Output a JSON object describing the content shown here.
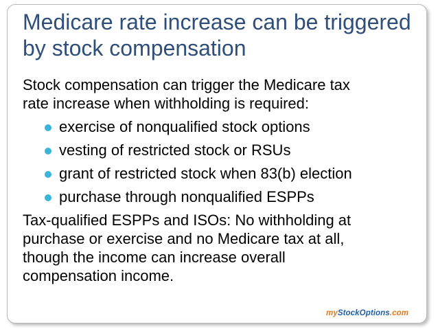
{
  "slide": {
    "title_lines": [
      "Medicare rate increase can be triggered",
      "by stock compensation"
    ],
    "intro": "Stock compensation can trigger the Medicare tax rate increase when withholding is required:",
    "intro_lines": [
      "Stock compensation can trigger the Medicare tax",
      "rate increase when withholding is required:"
    ],
    "bullets": [
      "exercise of nonqualified stock options",
      "vesting of restricted stock or RSUs",
      "grant of restricted stock when 83(b) election",
      "purchase through nonqualified ESPPs"
    ],
    "closing_lines": [
      "Tax-qualified ESPPs and ISOs: No withholding at",
      "purchase or exercise and no Medicare tax at all,",
      "though the income can increase overall",
      "compensation income."
    ],
    "bullet_color": "#3ab4d8",
    "title_color": "#2f4e7a"
  },
  "logo": {
    "part1": "my",
    "part2": "StockOptions",
    "part3": ".com"
  }
}
